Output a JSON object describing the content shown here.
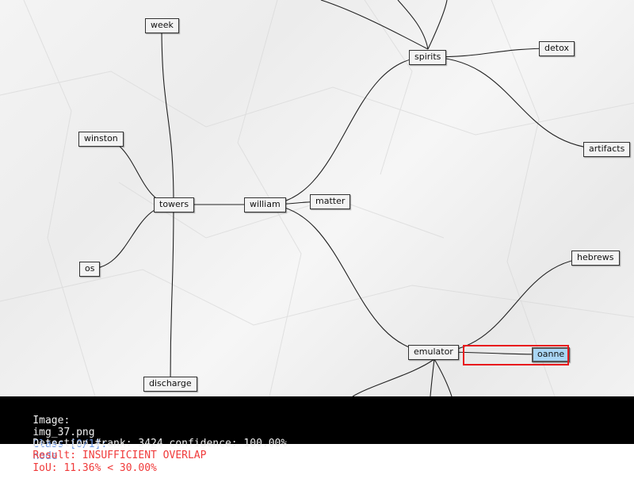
{
  "diagram": {
    "nodes": [
      {
        "id": "week",
        "label": "week"
      },
      {
        "id": "winston",
        "label": "winston"
      },
      {
        "id": "towers",
        "label": "towers"
      },
      {
        "id": "os",
        "label": "os"
      },
      {
        "id": "discharge",
        "label": "discharge"
      },
      {
        "id": "william",
        "label": "william"
      },
      {
        "id": "matter",
        "label": "matter"
      },
      {
        "id": "spirits",
        "label": "spirits"
      },
      {
        "id": "detox",
        "label": "detox"
      },
      {
        "id": "artifacts",
        "label": "artifacts"
      },
      {
        "id": "hebrews",
        "label": "hebrews"
      },
      {
        "id": "emulator",
        "label": "emulator"
      },
      {
        "id": "oanne",
        "label": "oanne",
        "highlighted": true
      }
    ],
    "edges": [
      [
        "towers",
        "week"
      ],
      [
        "towers",
        "winston"
      ],
      [
        "towers",
        "os"
      ],
      [
        "towers",
        "discharge"
      ],
      [
        "towers",
        "william"
      ],
      [
        "william",
        "matter"
      ],
      [
        "william",
        "spirits"
      ],
      [
        "william",
        "emulator"
      ],
      [
        "spirits",
        "detox"
      ],
      [
        "spirits",
        "artifacts"
      ],
      [
        "emulator",
        "hebrews"
      ],
      [
        "emulator",
        "oanne"
      ]
    ],
    "highlight_color": "#a9d6f5",
    "detection_box_color": "#e8191d"
  },
  "status": {
    "image_label": "Image:",
    "image_name": "img_37.png",
    "class_text": "Class [0/1]:",
    "class_name": "node",
    "iou_text": "IoU: 11.36% < 30.00%",
    "rank_text": "Detection #rank: 3424 confidence: 100.00%",
    "result_text": "Result: INSUFFICIENT OVERLAP",
    "colors": {
      "text": "#f0f0f0",
      "class": "#6f9be8",
      "alert": "#f03a3a"
    }
  }
}
